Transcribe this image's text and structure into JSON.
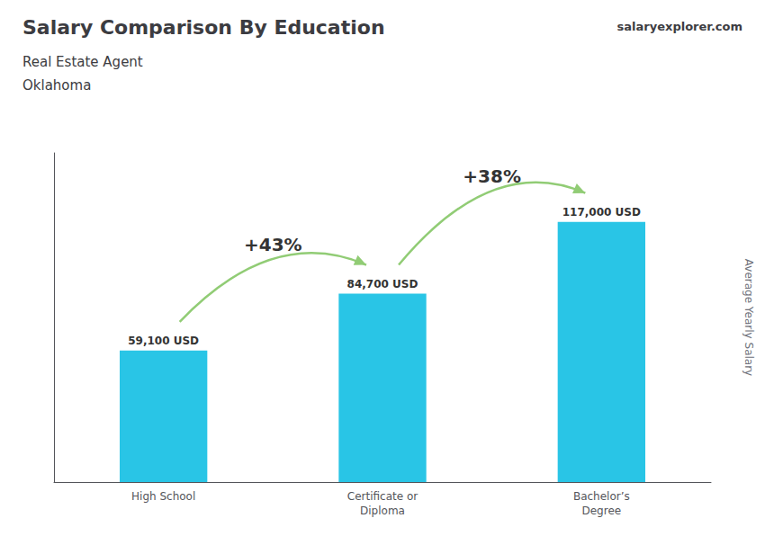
{
  "chart_data": {
    "type": "bar",
    "title": "Salary Comparison By Education",
    "subtitle": [
      "Real Estate Agent",
      "Oklahoma"
    ],
    "ylabel": "Average Yearly Salary",
    "categories": [
      "High School",
      "Certificate or\nDiploma",
      "Bachelor’s\nDegree"
    ],
    "values": [
      59100,
      84700,
      117000
    ],
    "value_labels": [
      "59,100 USD",
      "84,700 USD",
      "117,000 USD"
    ],
    "data_labels": true,
    "color": "#29c5e6",
    "ylim": [
      0,
      148000
    ],
    "tick_labels": "x",
    "grid": false,
    "annotations": [
      {
        "text": "+43%",
        "from": "High School",
        "to": "Certificate or\nDiploma"
      },
      {
        "text": "+38%",
        "from": "Certificate or\nDiploma",
        "to": "Bachelor’s\nDegree"
      },
      {
        "text": "salaryexplorer.com"
      }
    ]
  }
}
